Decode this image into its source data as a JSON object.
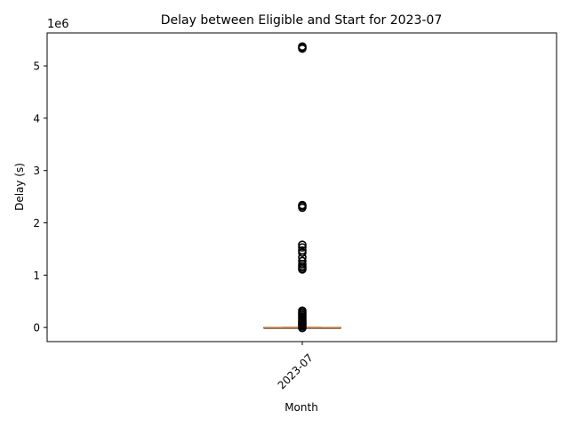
{
  "chart_data": {
    "type": "box",
    "title": "Delay between Eligible and Start for 2023-07",
    "xlabel": "Month",
    "ylabel": "Delay (s)",
    "y_offset_label": "1e6",
    "y_scale_factor": 1000000,
    "categories": [
      "2023-07"
    ],
    "x_tick_rotation_deg": 45,
    "ylim": [
      -0.27,
      5.63
    ],
    "y_ticks": [
      0,
      1,
      2,
      3,
      4,
      5
    ],
    "y_tick_labels": [
      "0",
      "1",
      "2",
      "3",
      "4",
      "5"
    ],
    "grid": false,
    "legend": "none",
    "boxes": [
      {
        "category": "2023-07",
        "median": 0.0,
        "q1": -0.002,
        "q3": 0.002,
        "whisker_low": -0.005,
        "whisker_high": 0.005,
        "outliers": [
          5.37,
          5.35,
          5.33,
          2.34,
          2.32,
          2.29,
          1.58,
          1.53,
          1.47,
          1.43,
          1.34,
          1.27,
          1.21,
          1.17,
          1.14,
          1.11,
          0.32,
          0.29,
          0.26,
          0.23,
          0.2,
          0.17,
          0.14,
          0.12,
          0.1,
          0.08,
          0.06,
          0.04,
          0.02,
          -0.01
        ]
      }
    ],
    "colors": {
      "box_edge": "#000000",
      "median": "#ff7f0e",
      "outlier_edge": "#000000",
      "axes": "#000000",
      "background": "#ffffff"
    }
  }
}
